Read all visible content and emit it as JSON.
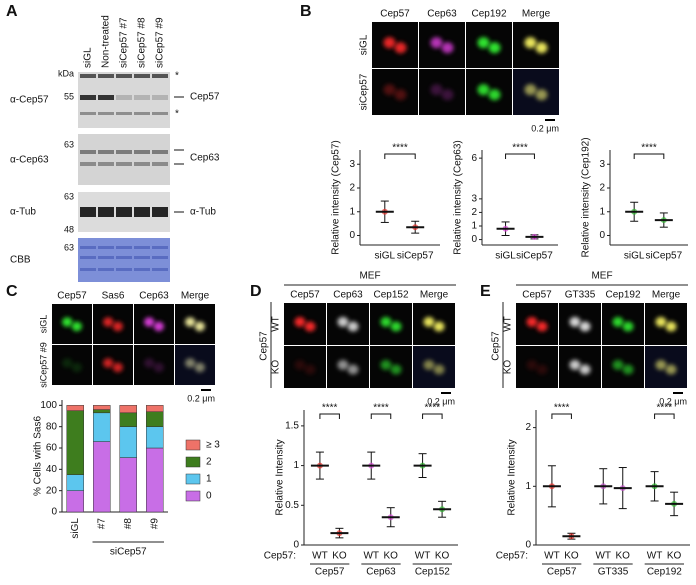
{
  "panels": {
    "A": {
      "letter": "A",
      "lanes": [
        "siGL",
        "Non-treated",
        "siCep57 #7",
        "siCep57 #8",
        "siCep57 #9"
      ],
      "kda": "kDa",
      "left_labels": [
        "α-Cep57",
        "α-Cep63",
        "α-Tub",
        "CBB"
      ],
      "markers": [
        "55",
        "63",
        "63",
        "48",
        "63"
      ],
      "right_labels": [
        "Cep57",
        "Cep63",
        "α-Tub"
      ],
      "asterisks": [
        "*",
        "*"
      ]
    },
    "B": {
      "letter": "B",
      "channels": [
        "Cep57",
        "Cep63",
        "Cep192",
        "Merge"
      ],
      "rows": [
        "siGL",
        "siCep57"
      ],
      "scale": "0.2 μm"
    },
    "C": {
      "letter": "C",
      "channels": [
        "Cep57",
        "Sas6",
        "Cep63",
        "Merge"
      ],
      "rows": [
        "siGL",
        "siCep57 #9"
      ],
      "scale": "0.2 μm"
    },
    "D": {
      "letter": "D",
      "cell": "MEF",
      "group": "Cep57",
      "channels": [
        "Cep57",
        "Cep63",
        "Cep152",
        "Merge"
      ],
      "rows": [
        "WT",
        "KO"
      ],
      "scale": "0.2 μm"
    },
    "E": {
      "letter": "E",
      "cell": "MEF",
      "group": "Cep57",
      "channels": [
        "Cep57",
        "GT335",
        "Cep192",
        "Merge"
      ],
      "rows": [
        "WT",
        "KO"
      ],
      "scale": "0.2 μm"
    }
  },
  "chart_data": [
    {
      "type": "dot",
      "ylabel": "Relative intensity (Cep57)",
      "categories": [
        "siGL",
        "siCep57"
      ],
      "values": [
        1.0,
        0.35
      ],
      "errors": [
        0.45,
        0.25
      ],
      "color": "#e8302a",
      "significance": "****",
      "ylim": [
        -0.4,
        3.6
      ],
      "yticks": [
        0,
        1,
        2,
        3
      ]
    },
    {
      "type": "dot",
      "ylabel": "Relative intensity (Cep63)",
      "categories": [
        "siGL",
        "siCep57"
      ],
      "values": [
        0.8,
        0.2
      ],
      "errors": [
        0.5,
        0.15
      ],
      "color": "#d84ad8",
      "significance": "****",
      "ylim": [
        -0.4,
        6.6
      ],
      "yticks": [
        0,
        1,
        2,
        3,
        6
      ]
    },
    {
      "type": "dot",
      "ylabel": "Relative intensity (Cep192)",
      "categories": [
        "siGL",
        "siCep57"
      ],
      "values": [
        1.0,
        0.65
      ],
      "errors": [
        0.4,
        0.3
      ],
      "color": "#2fb82f",
      "significance": "****",
      "ylim": [
        -0.4,
        3.6
      ],
      "yticks": [
        0,
        1,
        2,
        3
      ]
    },
    {
      "type": "stacked_bar",
      "ylabel": "% Cells with Sas6",
      "categories": [
        "siGL",
        "#7",
        "#8",
        "#9"
      ],
      "group_label": "siCep57",
      "series": [
        {
          "name": "0",
          "color": "#c86ee6",
          "values": [
            20,
            66,
            51,
            60
          ]
        },
        {
          "name": "1",
          "color": "#5cc6ee",
          "values": [
            15,
            27,
            29,
            20
          ]
        },
        {
          "name": "2",
          "color": "#3e7d1e",
          "values": [
            60,
            3,
            13,
            14
          ]
        },
        {
          "name": "≥ 3",
          "color": "#ee7268",
          "values": [
            5,
            4,
            7,
            6
          ]
        }
      ],
      "ylim": [
        0,
        105
      ],
      "yticks": [
        0,
        20,
        40,
        60,
        80,
        100
      ]
    },
    {
      "type": "dot",
      "ylabel": "Relative Intensity",
      "row_label": "Cep57:",
      "categories": [
        "WT",
        "KO"
      ],
      "series": [
        {
          "name": "Cep57",
          "color": "#e8302a",
          "values": [
            1.0,
            0.15
          ],
          "errors": [
            0.17,
            0.06
          ],
          "significance": "****"
        },
        {
          "name": "Cep63",
          "color": "#d84ad8",
          "values": [
            1.0,
            0.35
          ],
          "errors": [
            0.17,
            0.12
          ],
          "significance": "****"
        },
        {
          "name": "Cep152",
          "color": "#2fb82f",
          "values": [
            1.0,
            0.45
          ],
          "errors": [
            0.15,
            0.1
          ],
          "significance": "****"
        }
      ],
      "ylim": [
        0,
        1.7
      ],
      "yticks": [
        0,
        0.5,
        1,
        1.5
      ]
    },
    {
      "type": "dot",
      "ylabel": "Relative Intensity",
      "row_label": "Cep57:",
      "categories": [
        "WT",
        "KO"
      ],
      "series": [
        {
          "name": "Cep57",
          "color": "#e8302a",
          "values": [
            1.0,
            0.15
          ],
          "errors": [
            0.35,
            0.05
          ],
          "significance": "****"
        },
        {
          "name": "GT335",
          "color": "#c050c8",
          "values": [
            1.0,
            0.97
          ],
          "errors": [
            0.3,
            0.35
          ]
        },
        {
          "name": "Cep192",
          "color": "#2fb82f",
          "values": [
            1.0,
            0.7
          ],
          "errors": [
            0.25,
            0.2
          ],
          "significance": "****"
        }
      ],
      "ylim": [
        0,
        2.3
      ],
      "yticks": [
        0,
        1,
        2
      ]
    }
  ]
}
